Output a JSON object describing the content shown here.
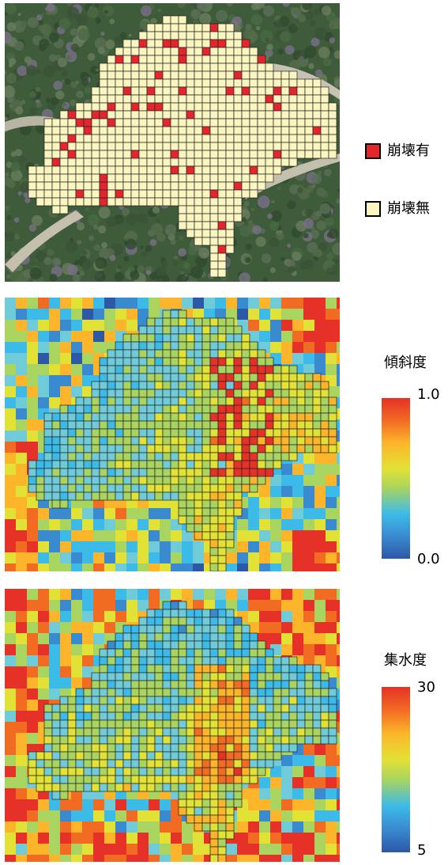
{
  "legend": {
    "collapse_yes": "崩壊有",
    "collapse_no": "崩壊無",
    "color_yes": "#e3262b",
    "color_no": "#fbf5c0"
  },
  "slope": {
    "title": "傾斜度",
    "max": "1.0",
    "min": "0.0"
  },
  "flow": {
    "title": "集水度",
    "max": "30",
    "min": "5"
  },
  "colors": {
    "grid_line": "#222222",
    "scale_high": "#e53127",
    "scale_mid": "#e2e136",
    "scale_low": "#2d58a6",
    "vegetation": "#3e5b3a"
  }
}
